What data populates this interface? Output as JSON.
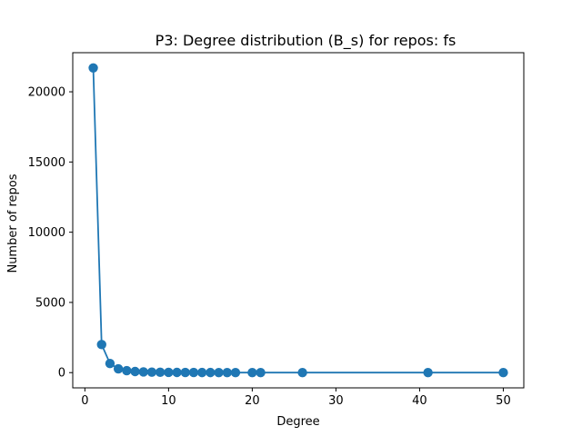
{
  "chart_data": {
    "type": "line",
    "title": "P3: Degree distribution (B_s) for repos: fs",
    "xlabel": "Degree",
    "ylabel": "Number of repos",
    "xlim": [
      -1.45,
      52.45
    ],
    "ylim": [
      -1085,
      22785
    ],
    "xticks": [
      0,
      10,
      20,
      30,
      40,
      50
    ],
    "yticks": [
      0,
      5000,
      10000,
      15000,
      20000
    ],
    "grid": false,
    "legend": false,
    "series": [
      {
        "color": "#1f77b4",
        "marker": "circle",
        "points": [
          {
            "x": 1,
            "y": 21700
          },
          {
            "x": 2,
            "y": 2000
          },
          {
            "x": 3,
            "y": 650
          },
          {
            "x": 4,
            "y": 270
          },
          {
            "x": 5,
            "y": 140
          },
          {
            "x": 6,
            "y": 80
          },
          {
            "x": 7,
            "y": 50
          },
          {
            "x": 8,
            "y": 35
          },
          {
            "x": 9,
            "y": 25
          },
          {
            "x": 10,
            "y": 18
          },
          {
            "x": 11,
            "y": 14
          },
          {
            "x": 12,
            "y": 11
          },
          {
            "x": 13,
            "y": 9
          },
          {
            "x": 14,
            "y": 7
          },
          {
            "x": 15,
            "y": 6
          },
          {
            "x": 16,
            "y": 5
          },
          {
            "x": 17,
            "y": 4
          },
          {
            "x": 18,
            "y": 3
          },
          {
            "x": 20,
            "y": 3
          },
          {
            "x": 21,
            "y": 2
          },
          {
            "x": 26,
            "y": 1
          },
          {
            "x": 41,
            "y": 1
          },
          {
            "x": 50,
            "y": 1
          }
        ]
      }
    ]
  }
}
